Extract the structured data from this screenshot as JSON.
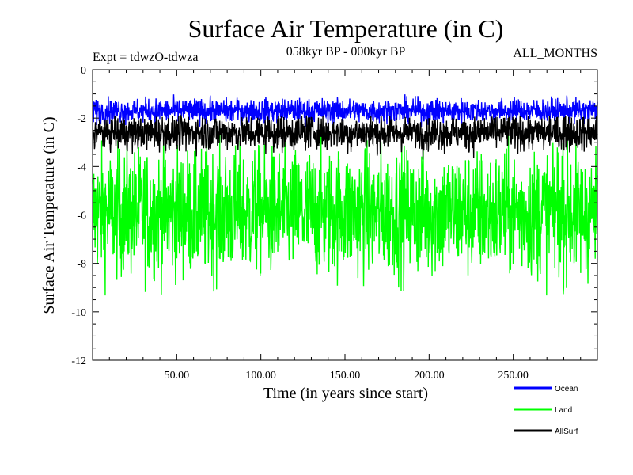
{
  "chart_data": {
    "type": "line",
    "title": "Surface Air Temperature (in C)",
    "subtitle": "058kyr BP - 000kyr BP",
    "annotation_left": "Expt = tdwzO-tdwza",
    "annotation_right": "ALL_MONTHS",
    "xlabel": "Time (in years since start)",
    "ylabel": "Surface Air Temperature (in C)",
    "xlim": [
      0,
      300
    ],
    "ylim": [
      -12,
      0
    ],
    "xticks": [
      50,
      100,
      150,
      200,
      250
    ],
    "xtick_labels": [
      "50.00",
      "100.00",
      "150.00",
      "200.00",
      "250.00"
    ],
    "yticks": [
      0,
      -2,
      -4,
      -6,
      -8,
      -10,
      -12
    ],
    "ytick_labels": [
      "0",
      "-2",
      "-4",
      "-6",
      "-8",
      "-10",
      "-12"
    ],
    "grid": false,
    "legend_position": "bottom-right",
    "series": [
      {
        "name": "Ocean",
        "color": "#0000ff",
        "mean": -1.7,
        "envelope": [
          -2.5,
          -1.0
        ]
      },
      {
        "name": "Land",
        "color": "#00ff00",
        "mean": -5.9,
        "envelope": [
          -10.2,
          -2.4
        ]
      },
      {
        "name": "AllSurf",
        "color": "#000000",
        "mean": -2.6,
        "envelope": [
          -4.1,
          -1.9
        ]
      }
    ]
  }
}
